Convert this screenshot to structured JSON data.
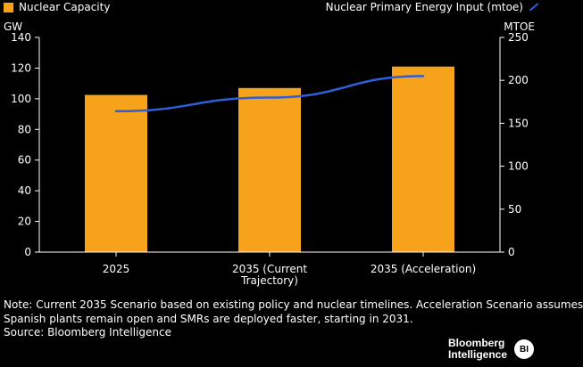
{
  "legend": {
    "left_label": "Nuclear Capacity",
    "right_label": "Nuclear Primary Energy Input (mtoe)"
  },
  "axes": {
    "left_unit": "GW",
    "right_unit": "MTOE"
  },
  "colors": {
    "background": "#000000",
    "bar": "#f7a21b",
    "line": "#2f5ed6",
    "text": "#ffffff"
  },
  "chart_data": {
    "type": "bar",
    "categories": [
      "2025",
      "2035 (Current Trajectory)",
      "2035 (Acceleration)"
    ],
    "category_label_lines": [
      [
        "2025"
      ],
      [
        "2035 (Current",
        "Trajectory)"
      ],
      [
        "2035 (Acceleration)"
      ]
    ],
    "series": [
      {
        "name": "Nuclear Capacity",
        "type": "bar",
        "axis": "left",
        "values": [
          102.5,
          107,
          121
        ]
      },
      {
        "name": "Nuclear Primary Energy Input (mtoe)",
        "type": "line",
        "axis": "right",
        "values": [
          164,
          180,
          205
        ]
      }
    ],
    "left_axis": {
      "label": "GW",
      "range": [
        0,
        140
      ],
      "ticks": [
        0,
        20,
        40,
        60,
        80,
        100,
        120,
        140
      ]
    },
    "right_axis": {
      "label": "MTOE",
      "range": [
        0,
        250
      ],
      "ticks": [
        0,
        50,
        100,
        150,
        200,
        250
      ]
    },
    "grid": false,
    "legend_position": "top"
  },
  "note": {
    "line1": "Note: Current 2035 Scenario based on existing policy and nuclear timelines. Acceleration Scenario assumes",
    "line2": "Spanish plants remain open and SMRs are deployed faster, starting in 2031.",
    "source": "Source: Bloomberg Intelligence"
  },
  "brand": {
    "line1": "Bloomberg",
    "line2": "Intelligence",
    "badge": "BI"
  }
}
